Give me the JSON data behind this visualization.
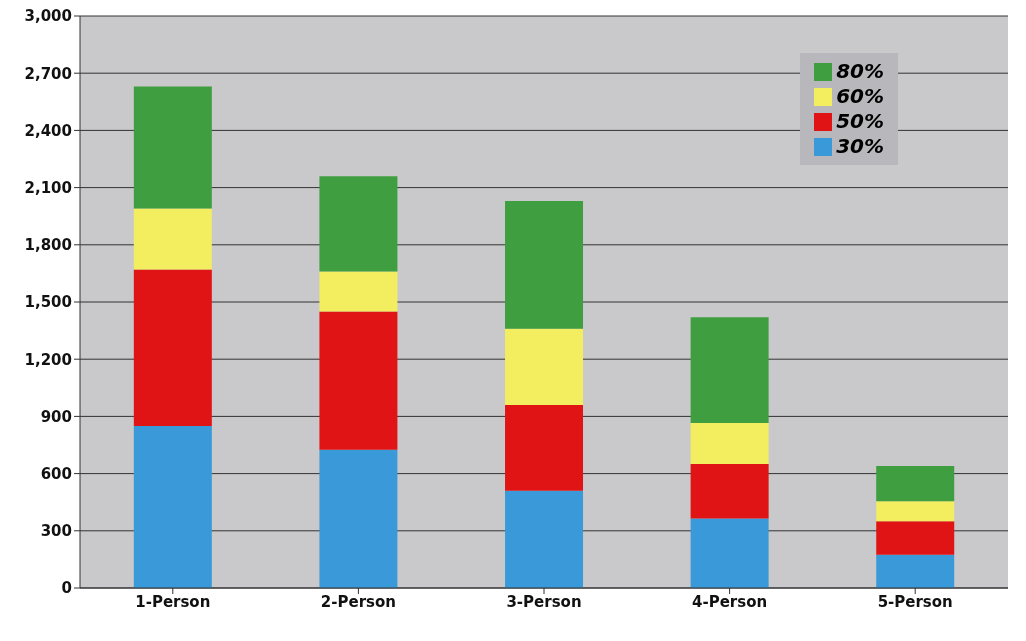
{
  "chart_data": {
    "type": "bar",
    "stacked": true,
    "categories": [
      "1-Person",
      "2-Person",
      "3-Person",
      "4-Person",
      "5-Person"
    ],
    "series": [
      {
        "name": "30%",
        "color": "#3a9ad9",
        "values": [
          850,
          725,
          510,
          365,
          175
        ]
      },
      {
        "name": "50%",
        "color": "#e01414",
        "values": [
          820,
          725,
          450,
          285,
          175
        ]
      },
      {
        "name": "60%",
        "color": "#f2ee60",
        "values": [
          320,
          210,
          400,
          215,
          105
        ]
      },
      {
        "name": "80%",
        "color": "#3f9e3f",
        "values": [
          640,
          500,
          670,
          555,
          185
        ]
      }
    ],
    "ylim": [
      0,
      3000
    ],
    "yticks": [
      0,
      300,
      600,
      900,
      {
        "value": 1200,
        "label": "1,200"
      },
      {
        "value": 1500,
        "label": "1,500"
      },
      {
        "value": 1800,
        "label": "1,800"
      },
      {
        "value": 2100,
        "label": "2,100"
      },
      {
        "value": 2400,
        "label": "2,400"
      },
      {
        "value": 2700,
        "label": "2,700"
      },
      {
        "value": 3000,
        "label": "3,000"
      }
    ],
    "grid": "y",
    "legend": "top right"
  }
}
